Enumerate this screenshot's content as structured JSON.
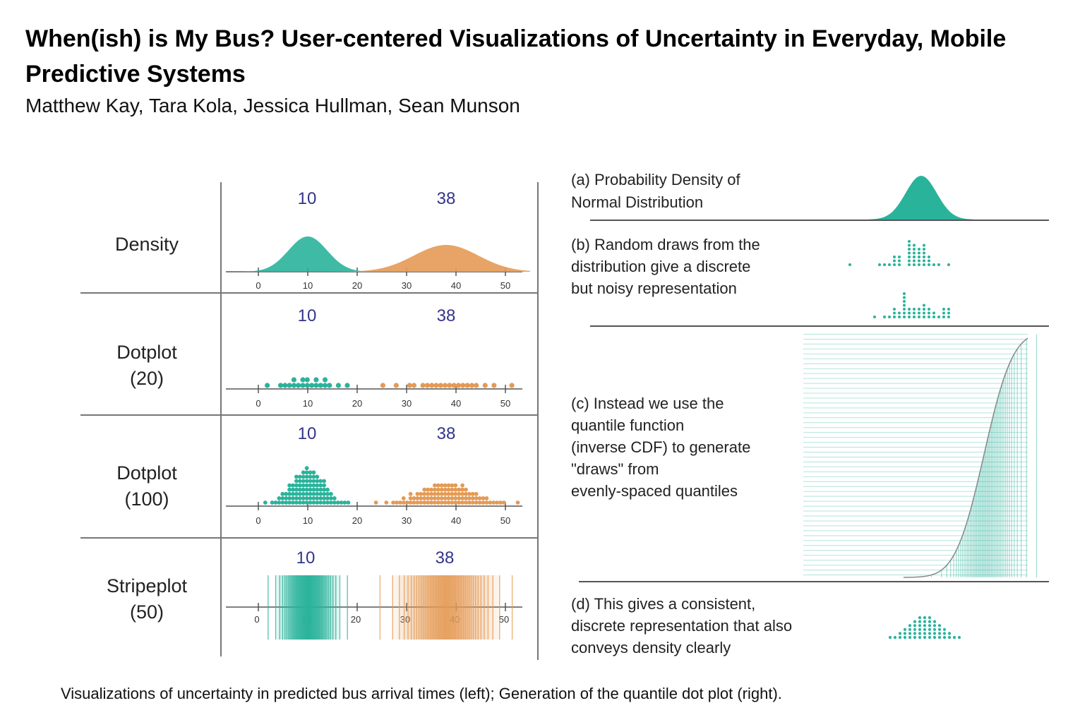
{
  "paper": {
    "title": "When(ish) is My Bus? User-centered Visualizations of Uncertainty in Everyday, Mobile Predictive Systems",
    "authors": "Matthew Kay, Tara Kola, Jessica Hullman, Sean Munson",
    "caption": "Visualizations of uncertainty in predicted bus arrival times (left); Generation of the quantile dot plot (right)."
  },
  "figure_left": {
    "rows": [
      {
        "label_lines": [
          "Density"
        ],
        "means": [
          "10",
          "38"
        ]
      },
      {
        "label_lines": [
          "Dotplot",
          "(20)"
        ],
        "means": [
          "10",
          "38"
        ]
      },
      {
        "label_lines": [
          "Dotplot",
          "(100)"
        ],
        "means": [
          "10",
          "38"
        ]
      },
      {
        "label_lines": [
          "Stripeplot",
          "(50)"
        ],
        "means": [
          "10",
          "38"
        ]
      }
    ],
    "axis_ticks": [
      "0",
      "10",
      "20",
      "30",
      "40",
      "50"
    ],
    "colors": {
      "teal": "#2ab39b",
      "orange": "#e49a55",
      "mean_label": "#33348a"
    }
  },
  "chart_data": {
    "type": "scatter",
    "x_domain": [
      0,
      53
    ],
    "x_ticks": [
      0,
      10,
      20,
      30,
      40,
      50
    ],
    "series": [
      {
        "color": "teal",
        "mean": 10,
        "spread": 3
      },
      {
        "color": "orange",
        "mean": 38,
        "spread": 5
      }
    ],
    "rows": [
      "density",
      "dotplot-20",
      "dotplot-100",
      "stripeplot-50"
    ]
  },
  "figure_right": {
    "steps": [
      {
        "lines": [
          "(a) Probability Density of",
          "Normal Distribution"
        ]
      },
      {
        "lines": [
          "(b) Random draws from the",
          "distribution give a discrete",
          "but noisy representation"
        ]
      },
      {
        "lines": [
          "(c) Instead we use the",
          "quantile function",
          "(inverse CDF) to generate",
          "\"draws\" from",
          "evenly-spaced quantiles"
        ]
      },
      {
        "lines": [
          "(d) This gives a consistent,",
          "discrete representation that also",
          "conveys density clearly"
        ]
      }
    ]
  }
}
